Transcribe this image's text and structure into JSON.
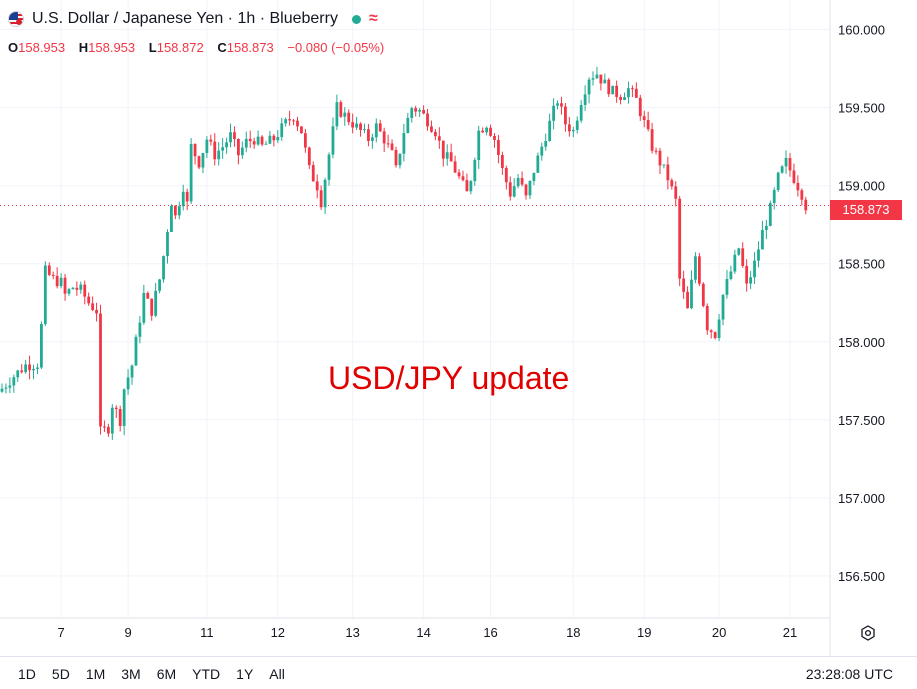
{
  "header": {
    "title": "U.S. Dollar / Japanese Yen · 1h · Blueberry",
    "flag_icon": "usd-jpy-flag-icon",
    "status_color": "#22ab94"
  },
  "ohlc": {
    "o_label": "O",
    "o": "158.953",
    "h_label": "H",
    "h": "158.953",
    "l_label": "L",
    "l": "158.872",
    "c_label": "C",
    "c": "158.873",
    "change": "−0.080 (−0.05%)"
  },
  "annotation": "USD/JPY update",
  "current_price": "158.873",
  "range_buttons": [
    "1D",
    "5D",
    "1M",
    "3M",
    "6M",
    "YTD",
    "1Y",
    "All"
  ],
  "clock": "23:28:08 UTC",
  "colors": {
    "up": "#22ab94",
    "down": "#f23645",
    "grid": "#f0f3fa",
    "axis_text": "#131722"
  },
  "chart_data": {
    "type": "candlestick",
    "symbol": "USD/JPY",
    "interval": "1h",
    "y_ticks": [
      160.0,
      159.5,
      159.0,
      158.5,
      158.0,
      157.5,
      157.0,
      156.5
    ],
    "y_tick_labels": [
      "160.000",
      "159.500",
      "159.000",
      "158.500",
      "158.000",
      "157.500",
      "157.000",
      "156.500"
    ],
    "ylim": [
      156.23,
      160.19
    ],
    "x_tick_labels": [
      "7",
      "9",
      "11",
      "12",
      "13",
      "14",
      "16",
      "18",
      "19",
      "20",
      "21"
    ],
    "x_tick_index": [
      15,
      32,
      52,
      70,
      89,
      107,
      124,
      145,
      163,
      182,
      200
    ],
    "x_count": 210,
    "last_price": 158.873,
    "path": [
      [
        0,
        157.7
      ],
      [
        3,
        157.78
      ],
      [
        6,
        157.85
      ],
      [
        9,
        157.86
      ],
      [
        10,
        158.1
      ],
      [
        11,
        158.45
      ],
      [
        13,
        158.4
      ],
      [
        15,
        158.38
      ],
      [
        16,
        158.3
      ],
      [
        18,
        158.35
      ],
      [
        20,
        158.33
      ],
      [
        22,
        158.25
      ],
      [
        24,
        158.2
      ],
      [
        25,
        157.42
      ],
      [
        27,
        157.45
      ],
      [
        28,
        157.6
      ],
      [
        30,
        157.5
      ],
      [
        31,
        157.7
      ],
      [
        33,
        157.85
      ],
      [
        34,
        158.0
      ],
      [
        36,
        158.3
      ],
      [
        38,
        158.2
      ],
      [
        40,
        158.4
      ],
      [
        41,
        158.55
      ],
      [
        43,
        158.9
      ],
      [
        44,
        158.8
      ],
      [
        46,
        159.0
      ],
      [
        47,
        158.88
      ],
      [
        48,
        159.25
      ],
      [
        50,
        159.15
      ],
      [
        52,
        159.3
      ],
      [
        54,
        159.2
      ],
      [
        56,
        159.25
      ],
      [
        58,
        159.32
      ],
      [
        60,
        159.2
      ],
      [
        62,
        159.28
      ],
      [
        64,
        159.3
      ],
      [
        66,
        159.25
      ],
      [
        69,
        159.3
      ],
      [
        72,
        159.4
      ],
      [
        74,
        159.45
      ],
      [
        76,
        159.35
      ],
      [
        78,
        159.1
      ],
      [
        80,
        159.0
      ],
      [
        81,
        158.9
      ],
      [
        83,
        159.2
      ],
      [
        85,
        159.5
      ],
      [
        87,
        159.45
      ],
      [
        89,
        159.4
      ],
      [
        91,
        159.35
      ],
      [
        93,
        159.3
      ],
      [
        95,
        159.38
      ],
      [
        97,
        159.3
      ],
      [
        99,
        159.2
      ],
      [
        100,
        159.1
      ],
      [
        102,
        159.35
      ],
      [
        104,
        159.5
      ],
      [
        106,
        159.48
      ],
      [
        108,
        159.42
      ],
      [
        110,
        159.35
      ],
      [
        112,
        159.2
      ],
      [
        114,
        159.15
      ],
      [
        116,
        159.05
      ],
      [
        118,
        158.95
      ],
      [
        119,
        159.05
      ],
      [
        121,
        159.35
      ],
      [
        123,
        159.4
      ],
      [
        125,
        159.3
      ],
      [
        127,
        159.1
      ],
      [
        129,
        158.95
      ],
      [
        131,
        159.05
      ],
      [
        133,
        158.92
      ],
      [
        135,
        159.1
      ],
      [
        137,
        159.25
      ],
      [
        139,
        159.4
      ],
      [
        141,
        159.55
      ],
      [
        143,
        159.4
      ],
      [
        145,
        159.35
      ],
      [
        147,
        159.55
      ],
      [
        149,
        159.7
      ],
      [
        151,
        159.72
      ],
      [
        153,
        159.65
      ],
      [
        155,
        159.6
      ],
      [
        157,
        159.58
      ],
      [
        159,
        159.62
      ],
      [
        161,
        159.55
      ],
      [
        163,
        159.4
      ],
      [
        165,
        159.25
      ],
      [
        167,
        159.15
      ],
      [
        169,
        159.05
      ],
      [
        171,
        158.9
      ],
      [
        172,
        158.4
      ],
      [
        174,
        158.2
      ],
      [
        176,
        158.55
      ],
      [
        178,
        158.25
      ],
      [
        179,
        158.1
      ],
      [
        181,
        158.05
      ],
      [
        183,
        158.3
      ],
      [
        185,
        158.45
      ],
      [
        187,
        158.6
      ],
      [
        189,
        158.35
      ],
      [
        191,
        158.5
      ],
      [
        193,
        158.7
      ],
      [
        195,
        158.85
      ],
      [
        197,
        159.05
      ],
      [
        199,
        159.15
      ],
      [
        201,
        159.05
      ],
      [
        203,
        158.95
      ],
      [
        204,
        158.873
      ]
    ]
  }
}
